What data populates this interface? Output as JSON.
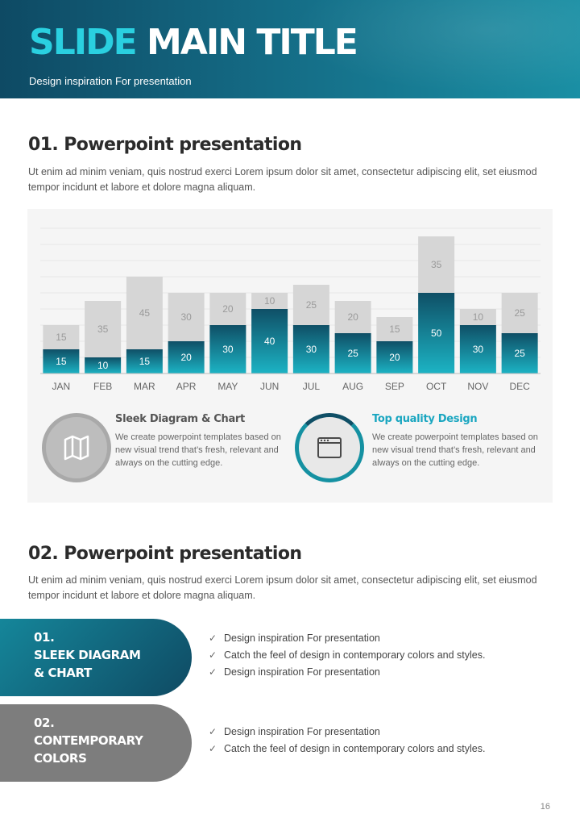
{
  "header": {
    "title_part1": "SLIDE",
    "title_part2": "MAIN TITLE",
    "subtitle": "Design inspiration For presentation"
  },
  "section1": {
    "title": "01. Powerpoint presentation",
    "text": "Ut enim ad minim veniam, quis nostrud exerci  Lorem ipsum dolor sit amet, consectetur adipiscing elit, set eiusmod tempor incidunt  et labore et dolore magna aliquam."
  },
  "chart_data": {
    "type": "bar",
    "stacked": true,
    "categories": [
      "JAN",
      "FEB",
      "MAR",
      "APR",
      "MAY",
      "JUN",
      "JUL",
      "AUG",
      "SEP",
      "OCT",
      "NOV",
      "DEC"
    ],
    "series": [
      {
        "values": [
          15,
          10,
          15,
          20,
          30,
          40,
          30,
          25,
          20,
          50,
          30,
          25
        ],
        "color": "#1698a9"
      },
      {
        "values": [
          15,
          35,
          45,
          30,
          20,
          10,
          25,
          20,
          15,
          35,
          10,
          25
        ],
        "color": "#d6d6d6"
      }
    ],
    "ylim": [
      0,
      90
    ],
    "grid": true,
    "data_labels": true
  },
  "features": [
    {
      "title": "Sleek Diagram & Chart",
      "text": "We create powerpoint templates based on new visual trend that’s fresh, relevant and always on the cutting edge.",
      "icon": "map-icon",
      "title_color": "#555555"
    },
    {
      "title": "Top quality Design",
      "text": "We create powerpoint templates based on new visual trend that’s fresh, relevant and always on the cutting edge.",
      "icon": "browser-window-icon",
      "title_color": "#1aa6c0"
    }
  ],
  "section2": {
    "title": "02. Powerpoint presentation",
    "text": "Ut enim ad minim veniam, quis nostrud exerci  Lorem ipsum dolor sit amet, consectetur adipiscing elit, set eiusmod tempor incidunt  et labore et dolore magna aliquam."
  },
  "items": [
    {
      "number": "01.",
      "line1": "SLEEK DIAGRAM",
      "line2": "& CHART",
      "checks": [
        "Design inspiration For presentation",
        "Catch the feel of design in contemporary colors and styles.",
        "Design inspiration For presentation"
      ]
    },
    {
      "number": "02.",
      "line1": "CONTEMPORARY",
      "line2": "COLORS",
      "checks": [
        "Design inspiration For presentation",
        "Catch the feel of design in contemporary colors and styles."
      ]
    }
  ],
  "colors": {
    "accent": "#2ad0e0",
    "teal_dark": "#0f4a63",
    "teal": "#1698a9",
    "grey_bar": "#d6d6d6",
    "pill_grey": "#7d7d7d"
  },
  "page_number": "16"
}
